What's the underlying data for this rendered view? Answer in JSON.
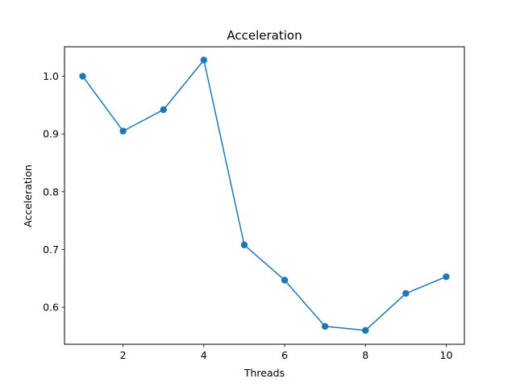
{
  "chart_data": {
    "type": "line",
    "title": "Acceleration",
    "xlabel": "Threads",
    "ylabel": "Acceleration",
    "xlim": [
      0.55,
      10.45
    ],
    "ylim": [
      0.536,
      1.051
    ],
    "xticks": [
      2,
      4,
      6,
      8,
      10
    ],
    "xtick_labels": [
      "2",
      "4",
      "6",
      "8",
      "10"
    ],
    "yticks": [
      0.6,
      0.7,
      0.8,
      0.9,
      1.0
    ],
    "ytick_labels": [
      "0.6",
      "0.7",
      "0.8",
      "0.9",
      "1.0"
    ],
    "grid": false,
    "legend": "none",
    "series": [
      {
        "color": "#1f77b4",
        "marker": "circle",
        "x": [
          1,
          2,
          3,
          4,
          5,
          6,
          7,
          8,
          9,
          10
        ],
        "y": [
          1.0,
          0.905,
          0.942,
          1.028,
          0.708,
          0.647,
          0.567,
          0.56,
          0.624,
          0.653
        ]
      }
    ]
  }
}
